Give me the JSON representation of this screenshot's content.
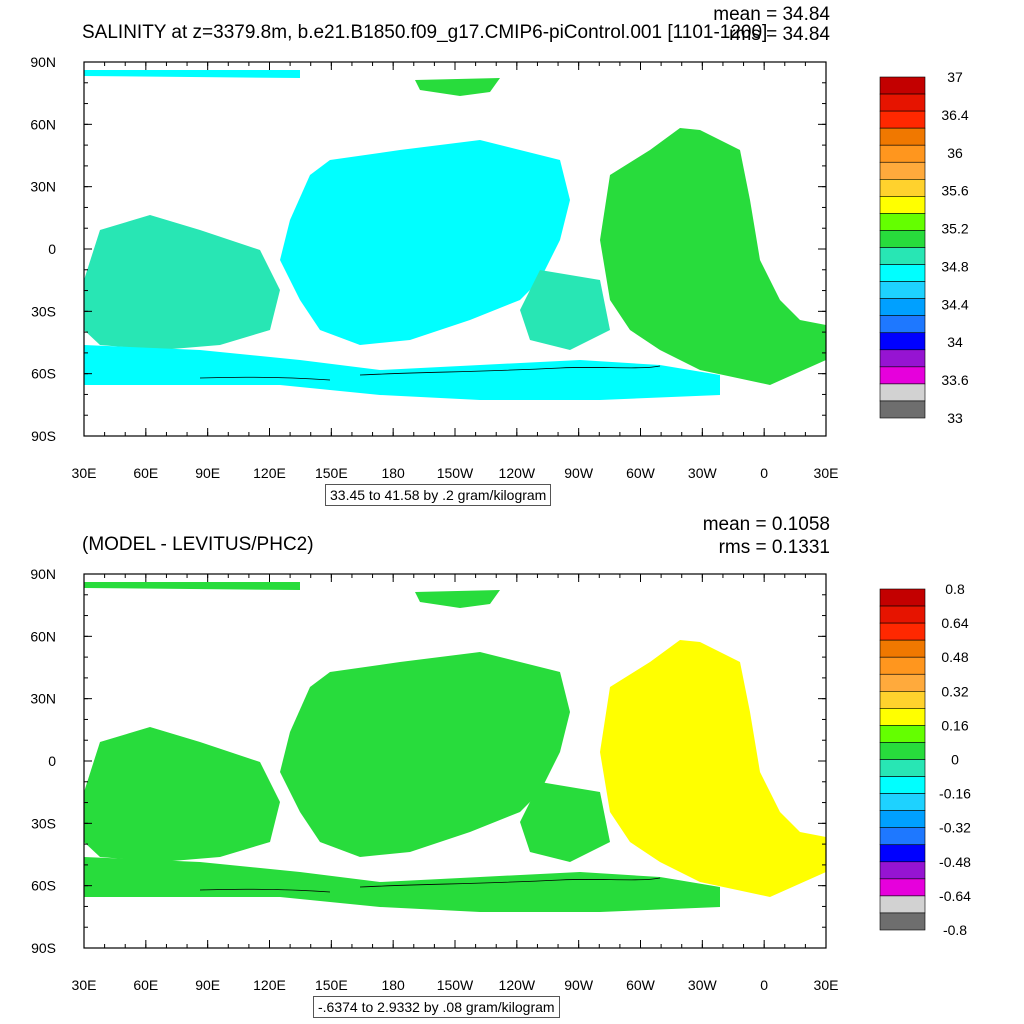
{
  "chart_data": [
    {
      "type": "heatmap",
      "subtype": "filled-contour-map",
      "title": "SALINITY at z=3379.8m, b.e21.B1850.f09_g17.CMIP6-piControl.001 [1101-1200]",
      "mean_label": "mean = 34.84",
      "rms_label": "rms = 34.84",
      "x_ticks": [
        "30E",
        "60E",
        "90E",
        "120E",
        "150E",
        "180",
        "150W",
        "120W",
        "90W",
        "60W",
        "30W",
        "0",
        "30E"
      ],
      "y_ticks": [
        "90N",
        "60N",
        "30N",
        "0",
        "30S",
        "60S",
        "90S"
      ],
      "colorbar": {
        "colors": [
          "#6e6e6e",
          "#d2d2d2",
          "#e600dc",
          "#9614d2",
          "#0000ff",
          "#1e78ff",
          "#00a0ff",
          "#1ed2ff",
          "#00ffff",
          "#28e6b4",
          "#28dc3c",
          "#64ff00",
          "#ffff00",
          "#ffd22d",
          "#ffaa3c",
          "#ff961e",
          "#f07800",
          "#ff2800",
          "#e61400",
          "#c30000"
        ],
        "labels": [
          "33",
          "33.6",
          "34",
          "34.4",
          "34.8",
          "35.2",
          "35.6",
          "36",
          "36.4",
          "37"
        ]
      },
      "caption": "33.45 to 41.58 by .2 gram/kilogram"
    },
    {
      "type": "heatmap",
      "subtype": "filled-contour-map",
      "title": "(MODEL - LEVITUS/PHC2)",
      "mean_label": "mean = 0.1058",
      "rms_label": "rms = 0.1331",
      "x_ticks": [
        "30E",
        "60E",
        "90E",
        "120E",
        "150E",
        "180",
        "150W",
        "120W",
        "90W",
        "60W",
        "30W",
        "0",
        "30E"
      ],
      "y_ticks": [
        "90N",
        "60N",
        "30N",
        "0",
        "30S",
        "60S",
        "90S"
      ],
      "colorbar": {
        "colors": [
          "#6e6e6e",
          "#d2d2d2",
          "#e600dc",
          "#9614d2",
          "#0000ff",
          "#1e78ff",
          "#00a0ff",
          "#1ed2ff",
          "#00ffff",
          "#28e6b4",
          "#28dc3c",
          "#64ff00",
          "#ffff00",
          "#ffd22d",
          "#ffaa3c",
          "#ff961e",
          "#f07800",
          "#ff2800",
          "#e61400",
          "#c30000"
        ],
        "labels": [
          "-0.8",
          "-0.64",
          "-0.48",
          "-0.32",
          "-0.16",
          "0",
          "0.16",
          "0.32",
          "0.48",
          "0.64",
          "0.8"
        ]
      },
      "caption": "-.6374 to 2.9332 by .08 gram/kilogram"
    }
  ]
}
